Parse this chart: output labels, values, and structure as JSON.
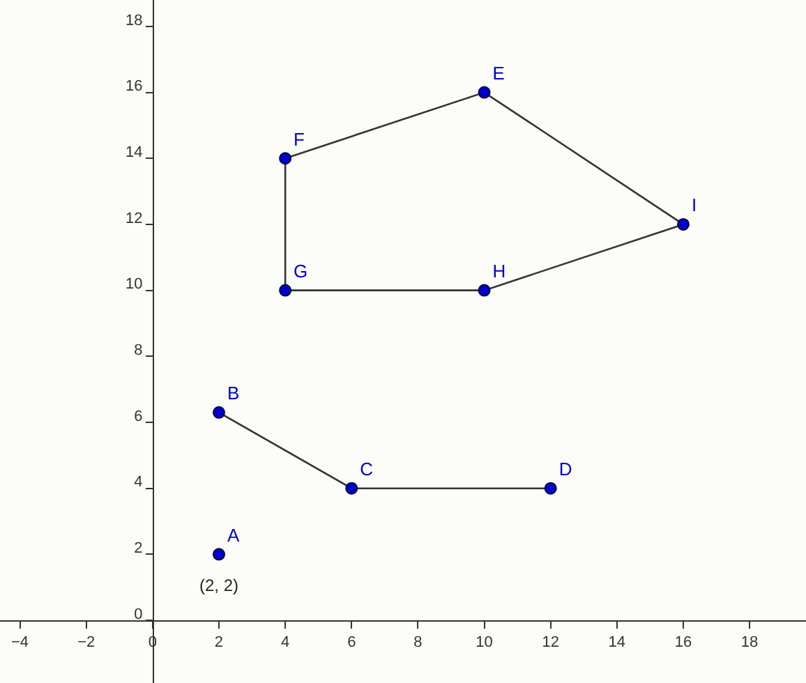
{
  "chart_data": {
    "type": "scatter",
    "xlim": [
      -4.6,
      19.7
    ],
    "ylim": [
      -1.9,
      18.8
    ],
    "xticks": [
      -4,
      -2,
      0,
      2,
      4,
      6,
      8,
      10,
      12,
      14,
      16,
      18
    ],
    "yticks": [
      0,
      2,
      4,
      6,
      8,
      10,
      12,
      14,
      16,
      18
    ],
    "grid": false,
    "marker": "circle",
    "series": [
      {
        "type": "line",
        "marker": "none",
        "color": "#333333",
        "x": [
          2,
          6,
          12
        ],
        "values": [
          6.3,
          4,
          4
        ]
      },
      {
        "type": "line",
        "marker": "none",
        "color": "#333333",
        "x": [
          4,
          10,
          16
        ],
        "values": [
          14,
          16,
          12
        ]
      },
      {
        "type": "line",
        "marker": "none",
        "color": "#333333",
        "x": [
          4,
          10,
          16
        ],
        "values": [
          10,
          10,
          12
        ]
      },
      {
        "type": "line",
        "marker": "none",
        "color": "#333333",
        "x": [
          4,
          4
        ],
        "values": [
          10,
          14
        ]
      },
      {
        "color": "#0000cc",
        "x": [
          2,
          2,
          6,
          12,
          10,
          4,
          4,
          10,
          16
        ],
        "values": [
          2,
          6.3,
          4,
          4,
          16,
          14,
          10,
          10,
          12
        ],
        "value_labels": [
          "A",
          "B",
          "C",
          "D",
          "E",
          "F",
          "G",
          "H",
          "I"
        ]
      }
    ],
    "annotations": [
      {
        "text": "(2, 2)",
        "x": 2,
        "y": 2
      }
    ]
  }
}
